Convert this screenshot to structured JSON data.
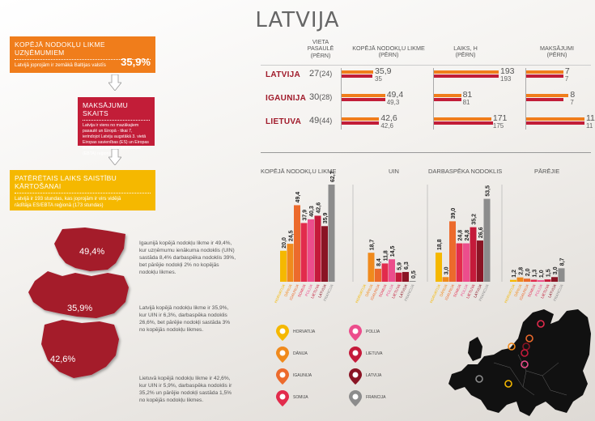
{
  "title": "LATVIJA",
  "colors": {
    "horvatija": "#f5b800",
    "danija": "#f08a1c",
    "igaunija": "#ec6a2c",
    "somija": "#e22b4c",
    "polija": "#ec4d8c",
    "lietuva": "#c41a3a",
    "latvija": "#8a1424",
    "francija": "#8c8c8c",
    "orange": "#f07d1b",
    "yellow": "#f5b800",
    "red": "#c21d38"
  },
  "info_boxes": [
    {
      "heading": "KOPĒJĀ NODOKĻU LIKME UZŅĒMUMIEM",
      "text": "Latvijā joprojām ir zemākā Baltijas valstīs",
      "value": "35,9%"
    },
    {
      "heading": "MAKSĀJUMU SKAITS",
      "text": "Latvija ir viens no mazākajiem pasaulē un Eiropā - tikai 7, ierindojot Latviju augstākā 3. vietā Eiropas savienības (ES) un Eiropas Brīvās tirdzniecības asociācijas (EBTA) reģionā"
    },
    {
      "heading": "PATĒRĒTAIS LAIKS SAISTĪBU KĀRTOŠANAI",
      "text": "Latvijā ir 193 stundas, kas joprojām ir virs vidējā rādītāja ES/EBTA reģionā (173 stundas)"
    }
  ],
  "table": {
    "headers": {
      "rank": "VIETA PASAULĒ (PĒRN)",
      "rate": "KOPĒJĀ NODOKĻU LIKME (PĒRN)",
      "hours": "LAIKS, H (PĒRN)",
      "payments": "MAKSĀJUMI (PĒRN)"
    },
    "rows": [
      {
        "country": "LATVIJA",
        "rank": "27",
        "rank_prev": "(24)",
        "rate": 35.9,
        "rate_label": "35,9",
        "rate_prev": 35,
        "rate_prev_label": "35",
        "hours": 193,
        "hours_prev": 193,
        "payments": 7,
        "payments_prev": 7
      },
      {
        "country": "IGAUNIJA",
        "rank": "30",
        "rank_prev": "(28)",
        "rate": 49.4,
        "rate_label": "49,4",
        "rate_prev": 49.3,
        "rate_prev_label": "49,3",
        "hours": 81,
        "hours_prev": 81,
        "payments": 8,
        "payments_prev": 7
      },
      {
        "country": "LIETUVA",
        "rank": "49",
        "rank_prev": "(44)",
        "rate": 42.6,
        "rate_label": "42,6",
        "rate_prev": 42.6,
        "rate_prev_label": "42,6",
        "hours": 171,
        "hours_prev": 175,
        "payments": 11,
        "payments_prev": 11
      }
    ]
  },
  "map_labels": {
    "estonia": "49,4%",
    "latvia": "35,9%",
    "lithuania": "42,6%"
  },
  "paragraphs": [
    "Igaunijā kopējā nodokļu likme ir 49,4%, kur uzņēmumu ienākuma nodoklis (UIN) sastāda 8,4% darbaspēka nodoklis 39%, bet pārējie nodokļi 2% no kopējās nodokļu likmes.",
    "Latvijā kopējā nodokļu likme ir 35,9%, kur UIN ir 6,3%, darbaspēka nodoklis 26,6%, bet pārējie nodokļi sastāda 3% no kopējās nodokļu likmes.",
    "Lietuvā kopējā nodokļu likme ir 42,6%, kur UIN ir 5,9%, darbaspēka nodoklis ir 35,2% un pārējie nodokļi sastāda 1,5% no kopējās nodokļu likmes."
  ],
  "chart_data": {
    "type": "bar",
    "groups": [
      "KOPĒJĀ NODOKĻU LIKME",
      "UIN",
      "DARBASPĒKA NODOKLIS",
      "PĀRĒJIE"
    ],
    "categories": [
      "HORVATIJA",
      "DĀNIJA",
      "IGAUNIJA",
      "SOMIJA",
      "POLIJA",
      "LIETUVA",
      "LATVIJA",
      "FRANCIJA"
    ],
    "series": [
      {
        "group": "KOPĒJĀ NODOKĻU LIKME",
        "values": [
          20.0,
          24.5,
          49.4,
          37.9,
          40.3,
          42.6,
          35.9,
          62.7
        ],
        "labels": [
          "20,0",
          "24,5",
          "49,4",
          "37,9",
          "40,3",
          "42,6",
          "35,9",
          "62,7"
        ]
      },
      {
        "group": "UIN",
        "values": [
          0.0,
          18.7,
          8.4,
          11.8,
          14.5,
          5.9,
          6.3,
          0.5
        ],
        "labels": [
          "",
          "18,7",
          "8,4",
          "11,8",
          "14,5",
          "5,9",
          "6,3",
          "0,5"
        ]
      },
      {
        "group": "DARBASPĒKA NODOKLIS",
        "values": [
          18.8,
          3.0,
          39.0,
          24.8,
          24.8,
          35.2,
          26.6,
          53.5
        ],
        "labels": [
          "18,8",
          "3,0",
          "39,0",
          "24,8",
          "24,8",
          "35,2",
          "26,6",
          "53,5"
        ]
      },
      {
        "group": "PĀRĒJIE",
        "values": [
          1.2,
          2.8,
          2.0,
          1.3,
          1.0,
          1.5,
          3.0,
          8.7
        ],
        "labels": [
          "1,2",
          "2,8",
          "2,0",
          "1,3",
          "1,0",
          "1,5",
          "3,0",
          "8,7"
        ]
      }
    ]
  },
  "legend": [
    {
      "name": "HORVATIJA",
      "color": "#f5b800"
    },
    {
      "name": "DĀNIJA",
      "color": "#f08a1c"
    },
    {
      "name": "IGAUNIJA",
      "color": "#ec6a2c"
    },
    {
      "name": "SOMIJA",
      "color": "#e22b4c"
    },
    {
      "name": "POLIJA",
      "color": "#ec4d8c"
    },
    {
      "name": "LIETUVA",
      "color": "#c41a3a"
    },
    {
      "name": "LATVIJA",
      "color": "#8a1424"
    },
    {
      "name": "FRANCIJA",
      "color": "#8c8c8c"
    }
  ]
}
